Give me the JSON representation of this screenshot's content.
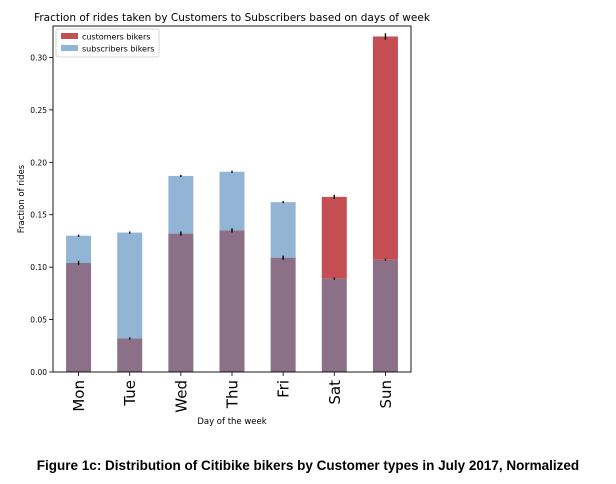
{
  "chart_data": {
    "type": "bar",
    "title": "Fraction of rides taken by Customers to Subscribers based on days of week",
    "xlabel": "Day of the week",
    "ylabel": "Fraction of rides",
    "categories": [
      "Mon",
      "Tue",
      "Wed",
      "Thu",
      "Fri",
      "Sat",
      "Sun"
    ],
    "ylim": [
      0,
      0.33
    ],
    "yticks": [
      "0.00",
      "0.05",
      "0.10",
      "0.15",
      "0.20",
      "0.25",
      "0.30"
    ],
    "legend_position": "top-left",
    "grid": false,
    "series": [
      {
        "name": "customers bikers",
        "color": "#c44e52",
        "values": [
          0.104,
          0.032,
          0.132,
          0.135,
          0.109,
          0.167,
          0.32
        ],
        "errors": [
          0.002,
          0.001,
          0.002,
          0.002,
          0.002,
          0.002,
          0.003
        ]
      },
      {
        "name": "subscribers bikers",
        "color": "#92b5d6",
        "values": [
          0.13,
          0.133,
          0.187,
          0.191,
          0.162,
          0.089,
          0.107
        ],
        "errors": [
          0.001,
          0.001,
          0.001,
          0.001,
          0.001,
          0.001,
          0.001
        ]
      }
    ],
    "overlap_color": "#8b7088"
  },
  "caption": "Figure 1c: Distribution of Citibike bikers by Customer types in July 2017, Normalized"
}
